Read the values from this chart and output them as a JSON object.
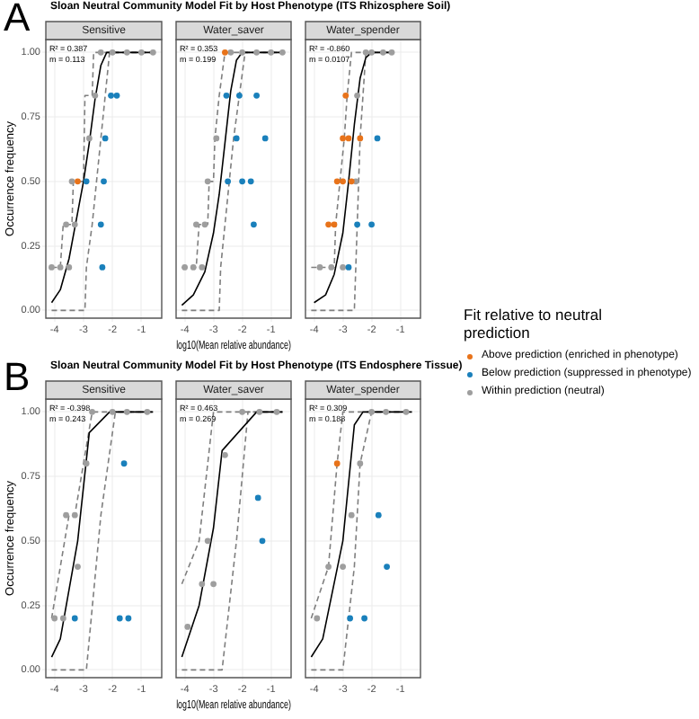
{
  "chart_data": [
    {
      "type": "scatter",
      "title": "Sloan Neutral Community Model Fit by Host Phenotype (ITS Rhizosphere Soil)",
      "subtitle": "Sensitive",
      "annotations": [
        "A",
        "R² = 0.387",
        "m = 0.113"
      ],
      "ylabel": "Occurrence frequency",
      "xlim": [
        -4.3,
        -0.3
      ],
      "xticks": [
        -4,
        -3,
        -2,
        -1
      ],
      "ylim": [
        -0.03,
        1.05
      ],
      "yticks": [
        {
          "value": 0,
          "label": "0.00"
        },
        {
          "value": 0.25,
          "label": "0.25"
        },
        {
          "value": 0.5,
          "label": "0.50"
        },
        {
          "value": 0.75,
          "label": "0.75"
        },
        {
          "value": 1,
          "label": "1.00"
        }
      ],
      "grid": true,
      "series": [
        {
          "type": "line",
          "marker": "none",
          "color": "#000000",
          "x": [
            -4.1,
            -3.8,
            -3.5,
            -3.2,
            -3.0,
            -2.8,
            -2.6,
            -2.4,
            -2.2,
            -0.6
          ],
          "values": [
            0.03,
            0.08,
            0.2,
            0.38,
            0.5,
            0.65,
            0.82,
            0.95,
            1,
            1
          ]
        },
        {
          "type": "line",
          "marker": "none",
          "line_style": "dashed",
          "color": "#7f7f7f",
          "x": [
            -4.1,
            -3.8,
            -3.7,
            -3.4,
            -3.35,
            -3.0,
            -2.95,
            -2.7,
            -2.65,
            -0.6
          ],
          "values": [
            0.167,
            0.167,
            0.333,
            0.333,
            0.5,
            0.5,
            0.833,
            0.833,
            1,
            1
          ]
        },
        {
          "type": "line",
          "marker": "none",
          "line_style": "dashed",
          "color": "#7f7f7f",
          "x": [
            -4.1,
            -2.95,
            -2.9,
            -2.7,
            -2.55,
            -2.4,
            -2.25,
            -2.1,
            -0.6
          ],
          "values": [
            0,
            0,
            0.167,
            0.333,
            0.5,
            0.667,
            0.833,
            1,
            1
          ]
        },
        {
          "marker": "circle",
          "color": "#e8731a",
          "x": [
            -3.2
          ],
          "values": [
            0.5
          ]
        },
        {
          "marker": "circle",
          "color": "#1a80bb",
          "x": [
            -2.35,
            -2.4,
            -2.9,
            -2.3,
            -2.25,
            -1.85,
            -2.05
          ],
          "values": [
            0.167,
            0.333,
            0.5,
            0.5,
            0.667,
            0.833,
            0.833
          ]
        },
        {
          "marker": "circle",
          "color": "#9e9e9e",
          "x": [
            -4.1,
            -3.8,
            -3.5,
            -3.6,
            -3.3,
            -3.4,
            -2.8,
            -2.6,
            -2.4,
            -2.0,
            -1.5,
            -1.0,
            -0.6
          ],
          "values": [
            0.167,
            0.167,
            0.167,
            0.333,
            0.333,
            0.5,
            0.667,
            0.833,
            1,
            1,
            1,
            1,
            1
          ]
        }
      ]
    },
    {
      "type": "scatter",
      "subtitle": "Water_saver",
      "annotations": [
        "R² = 0.353",
        "m = 0.199"
      ],
      "xlabel": "log10(Mean relative abundance)",
      "xlim": [
        -4.3,
        -0.3
      ],
      "xticks": [
        -4,
        -3,
        -2,
        -1
      ],
      "ylim": [
        -0.03,
        1.05
      ],
      "yticks": [
        {
          "value": 0,
          "label": null
        },
        {
          "value": 0.25,
          "label": null
        },
        {
          "value": 0.5,
          "label": null
        },
        {
          "value": 0.75,
          "label": null
        },
        {
          "value": 1,
          "label": null
        }
      ],
      "grid": true,
      "tick_labels": "x",
      "series": [
        {
          "type": "line",
          "marker": "none",
          "color": "#000000",
          "x": [
            -4.1,
            -3.7,
            -3.3,
            -3.0,
            -2.8,
            -2.6,
            -2.4,
            -2.2,
            -2.0,
            -0.6
          ],
          "values": [
            0.02,
            0.06,
            0.15,
            0.3,
            0.45,
            0.65,
            0.85,
            0.97,
            1,
            1
          ]
        },
        {
          "type": "line",
          "marker": "none",
          "line_style": "dashed",
          "color": "#7f7f7f",
          "x": [
            -4.1,
            -3.6,
            -3.5,
            -3.2,
            -3.15,
            -3.0,
            -2.95,
            -2.8,
            -2.6,
            -0.6
          ],
          "values": [
            0.167,
            0.167,
            0.333,
            0.333,
            0.5,
            0.5,
            0.667,
            0.833,
            1,
            1
          ]
        },
        {
          "type": "line",
          "marker": "none",
          "line_style": "dashed",
          "color": "#7f7f7f",
          "x": [
            -4.1,
            -2.8,
            -2.75,
            -2.6,
            -2.45,
            -2.3,
            -2.1,
            -1.9,
            -0.6
          ],
          "values": [
            0,
            0,
            0.167,
            0.333,
            0.5,
            0.667,
            0.833,
            1,
            1
          ]
        },
        {
          "marker": "circle",
          "color": "#e8731a",
          "x": [
            -2.6
          ],
          "values": [
            1
          ]
        },
        {
          "marker": "circle",
          "color": "#1a80bb",
          "x": [
            -2.55,
            -2.1,
            -1.5,
            -2.2,
            -1.2,
            -2.5,
            -2.0,
            -1.7,
            -1.6
          ],
          "values": [
            0.833,
            0.833,
            0.833,
            0.667,
            0.667,
            0.5,
            0.5,
            0.5,
            0.333
          ]
        },
        {
          "marker": "circle",
          "color": "#9e9e9e",
          "x": [
            -4.0,
            -3.7,
            -3.4,
            -3.6,
            -3.3,
            -3.2,
            -2.9,
            -2.4,
            -2.0,
            -1.5,
            -1.0,
            -0.6
          ],
          "values": [
            0.167,
            0.167,
            0.167,
            0.333,
            0.333,
            0.5,
            0.667,
            1,
            1,
            1,
            1,
            1
          ]
        }
      ]
    },
    {
      "type": "scatter",
      "subtitle": "Water_spender",
      "annotations": [
        "R² = -0.860",
        "m = 0.0107"
      ],
      "xlim": [
        -4.3,
        -0.3
      ],
      "xticks": [
        -4,
        -3,
        -2,
        -1
      ],
      "ylim": [
        -0.03,
        1.05
      ],
      "yticks": [
        {
          "value": 0,
          "label": null
        },
        {
          "value": 0.25,
          "label": null
        },
        {
          "value": 0.5,
          "label": null
        },
        {
          "value": 0.75,
          "label": null
        },
        {
          "value": 1,
          "label": null
        }
      ],
      "grid": true,
      "tick_labels": "x",
      "legend": "right",
      "legend_title": "Fit relative to neutral prediction",
      "series": [
        {
          "type": "line",
          "marker": "none",
          "color": "#000000",
          "x": [
            -4.0,
            -3.6,
            -3.3,
            -3.0,
            -2.8,
            -2.6,
            -2.4,
            -2.2,
            -2.0,
            -1.3
          ],
          "values": [
            0.03,
            0.06,
            0.14,
            0.3,
            0.5,
            0.72,
            0.9,
            0.98,
            1,
            1
          ]
        },
        {
          "type": "line",
          "marker": "none",
          "line_style": "dashed",
          "color": "#7f7f7f",
          "x": [
            -4.1,
            -3.3,
            -3.25,
            -3.1,
            -2.95,
            -2.85,
            -2.7,
            -1.3
          ],
          "values": [
            0.167,
            0.167,
            0.333,
            0.5,
            0.667,
            0.833,
            1,
            1
          ]
        },
        {
          "type": "line",
          "marker": "none",
          "line_style": "dashed",
          "color": "#7f7f7f",
          "x": [
            -4.1,
            -2.6,
            -2.5,
            -2.4,
            -2.3,
            -2.2,
            -1.3
          ],
          "values": [
            0,
            0,
            0.333,
            0.667,
            0.833,
            1,
            1
          ]
        },
        {
          "name": "Above prediction (enriched in phenotype)",
          "marker": "circle",
          "color": "#e8731a",
          "x": [
            -2.9,
            -3.0,
            -2.8,
            -2.4,
            -3.2,
            -3.0,
            -2.7,
            -3.5,
            -3.3
          ],
          "values": [
            0.833,
            0.667,
            0.667,
            0.667,
            0.5,
            0.5,
            0.5,
            0.333,
            0.333
          ]
        },
        {
          "name": "Below prediction (suppressed in phenotype)",
          "marker": "circle",
          "color": "#1a80bb",
          "x": [
            -1.8,
            -2.0,
            -2.5,
            -2.8
          ],
          "values": [
            0.667,
            0.333,
            0.333,
            0.167
          ]
        },
        {
          "name": "Within prediction (neutral)",
          "marker": "circle",
          "color": "#9e9e9e",
          "x": [
            -3.8,
            -3.4,
            -3.0,
            -2.55,
            -2.5,
            -2.2,
            -2.0,
            -1.6,
            -1.3
          ],
          "values": [
            0.167,
            0.167,
            0.167,
            0.5,
            0.833,
            1,
            1,
            1,
            1
          ]
        }
      ]
    },
    {
      "type": "scatter",
      "title": "Sloan Neutral Community Model Fit by Host Phenotype (ITS Endosphere Tissue)",
      "subtitle": "Sensitive",
      "annotations": [
        "B",
        "R² = -0.398",
        "m = 0.243"
      ],
      "ylabel": "Occurrence frequency",
      "xlim": [
        -4.3,
        -0.3
      ],
      "xticks": [
        -4,
        -3,
        -2,
        -1
      ],
      "ylim": [
        -0.03,
        1.05
      ],
      "yticks": [
        {
          "value": 0,
          "label": "0.00"
        },
        {
          "value": 0.25,
          "label": "0.25"
        },
        {
          "value": 0.5,
          "label": "0.50"
        },
        {
          "value": 0.75,
          "label": "0.75"
        },
        {
          "value": 1,
          "label": "1.00"
        }
      ],
      "grid": true,
      "series": [
        {
          "type": "line",
          "marker": "none",
          "color": "#000000",
          "x": [
            -4.1,
            -3.8,
            -3.2,
            -2.8,
            -2.1,
            -0.6
          ],
          "values": [
            0.05,
            0.12,
            0.5,
            0.92,
            1,
            1
          ]
        },
        {
          "type": "line",
          "marker": "none",
          "line_style": "dashed",
          "color": "#7f7f7f",
          "x": [
            -4.1,
            -3.5,
            -3.3,
            -2.7,
            -0.6
          ],
          "values": [
            0.2,
            0.6,
            0.6,
            1,
            1
          ]
        },
        {
          "type": "line",
          "marker": "none",
          "line_style": "dashed",
          "color": "#7f7f7f",
          "x": [
            -4.1,
            -2.9,
            -2.4,
            -1.9,
            -0.6
          ],
          "values": [
            0,
            0,
            0.6,
            1,
            1
          ]
        },
        {
          "marker": "circle",
          "color": "#1a80bb",
          "x": [
            -1.6,
            -3.3,
            -1.75,
            -1.45
          ],
          "values": [
            0.8,
            0.2,
            0.2,
            0.2
          ]
        },
        {
          "marker": "circle",
          "color": "#9e9e9e",
          "x": [
            -4.0,
            -3.7,
            -3.6,
            -3.3,
            -3.2,
            -2.9,
            -2.7,
            -2.0,
            -1.5,
            -0.8
          ],
          "values": [
            0.2,
            0.2,
            0.6,
            0.6,
            0.4,
            0.8,
            1,
            1,
            1,
            1
          ]
        }
      ]
    },
    {
      "type": "scatter",
      "subtitle": "Water_saver",
      "annotations": [
        "R² = 0.463",
        "m = 0.269"
      ],
      "xlabel": "log10(Mean relative abundance)",
      "xlim": [
        -4.3,
        -0.3
      ],
      "xticks": [
        -4,
        -3,
        -2,
        -1
      ],
      "ylim": [
        -0.03,
        1.05
      ],
      "yticks": [
        {
          "value": 0,
          "label": null
        },
        {
          "value": 0.25,
          "label": null
        },
        {
          "value": 0.5,
          "label": null
        },
        {
          "value": 0.75,
          "label": null
        },
        {
          "value": 1,
          "label": null
        }
      ],
      "grid": true,
      "tick_labels": "x",
      "series": [
        {
          "type": "line",
          "marker": "none",
          "color": "#000000",
          "x": [
            -4.1,
            -3.5,
            -3.0,
            -2.7,
            -1.5,
            -0.6
          ],
          "values": [
            0.05,
            0.25,
            0.55,
            0.85,
            1,
            1
          ]
        },
        {
          "type": "line",
          "marker": "none",
          "line_style": "dashed",
          "color": "#7f7f7f",
          "x": [
            -4.1,
            -3.5,
            -3.0,
            -0.6
          ],
          "values": [
            0.333,
            0.5,
            1,
            1
          ]
        },
        {
          "type": "line",
          "marker": "none",
          "line_style": "dashed",
          "color": "#7f7f7f",
          "x": [
            -4.1,
            -2.7,
            -2.2,
            -1.8,
            -0.6
          ],
          "values": [
            0,
            0,
            0.5,
            1,
            1
          ]
        },
        {
          "marker": "circle",
          "color": "#1a80bb",
          "x": [
            -1.45,
            -1.3
          ],
          "values": [
            0.667,
            0.5
          ]
        },
        {
          "marker": "circle",
          "color": "#9e9e9e",
          "x": [
            -3.9,
            -3.4,
            -3.2,
            -3.0,
            -2.6,
            -2.0,
            -1.4,
            -0.8
          ],
          "values": [
            0.167,
            0.333,
            0.5,
            0.333,
            0.833,
            1,
            1,
            1
          ]
        }
      ]
    },
    {
      "type": "scatter",
      "subtitle": "Water_spender",
      "annotations": [
        "R² = 0.309",
        "m = 0.188"
      ],
      "xlim": [
        -4.3,
        -0.3
      ],
      "xticks": [
        -4,
        -3,
        -2,
        -1
      ],
      "ylim": [
        -0.03,
        1.05
      ],
      "yticks": [
        {
          "value": 0,
          "label": null
        },
        {
          "value": 0.25,
          "label": null
        },
        {
          "value": 0.5,
          "label": null
        },
        {
          "value": 0.75,
          "label": null
        },
        {
          "value": 1,
          "label": null
        }
      ],
      "grid": true,
      "tick_labels": "x",
      "series": [
        {
          "type": "line",
          "marker": "none",
          "color": "#000000",
          "x": [
            -4.1,
            -3.7,
            -3.0,
            -2.6,
            -2.3,
            -0.6
          ],
          "values": [
            0.05,
            0.12,
            0.5,
            0.95,
            1,
            1
          ]
        },
        {
          "type": "line",
          "marker": "none",
          "line_style": "dashed",
          "color": "#7f7f7f",
          "x": [
            -4.1,
            -3.5,
            -3.2,
            -3.0,
            -0.6
          ],
          "values": [
            0.2,
            0.4,
            0.8,
            1,
            1
          ]
        },
        {
          "type": "line",
          "marker": "none",
          "line_style": "dashed",
          "color": "#7f7f7f",
          "x": [
            -4.1,
            -3.0,
            -2.6,
            -2.4,
            -2.0,
            -0.6
          ],
          "values": [
            0,
            0,
            0.4,
            0.8,
            1,
            1
          ]
        },
        {
          "marker": "circle",
          "color": "#e8731a",
          "x": [
            -3.2
          ],
          "values": [
            0.8
          ]
        },
        {
          "marker": "circle",
          "color": "#1a80bb",
          "x": [
            -1.76,
            -1.47,
            -2.75,
            -2.25
          ],
          "values": [
            0.6,
            0.4,
            0.2,
            0.2
          ]
        },
        {
          "marker": "circle",
          "color": "#9e9e9e",
          "x": [
            -3.9,
            -3.5,
            -3.0,
            -2.7,
            -2.4,
            -2.0,
            -1.5,
            -0.8
          ],
          "values": [
            0.2,
            0.4,
            0.4,
            0.6,
            0.8,
            1,
            1,
            1
          ]
        }
      ]
    }
  ]
}
